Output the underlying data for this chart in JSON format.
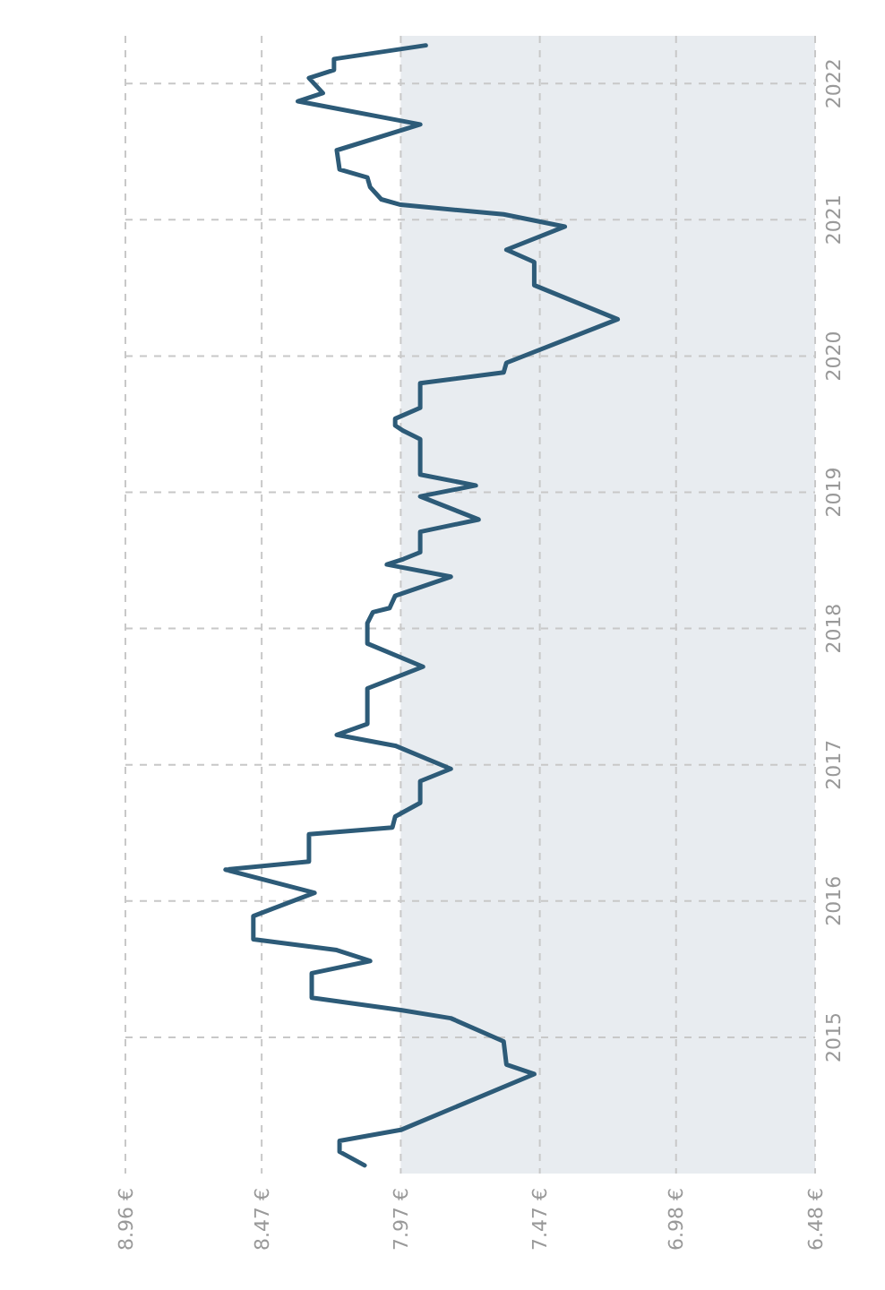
{
  "chart_data": {
    "type": "line",
    "x": [
      8.1,
      8.19,
      8.19,
      7.97,
      7.49,
      7.59,
      7.6,
      7.79,
      7.97,
      8.29,
      8.29,
      8.08,
      8.2,
      8.5,
      8.5,
      8.28,
      8.6,
      8.3,
      8.3,
      8.0,
      7.99,
      7.9,
      7.9,
      7.79,
      7.99,
      8.2,
      8.09,
      8.09,
      7.89,
      8.09,
      8.09,
      8.07,
      8.01,
      7.99,
      7.79,
      8.02,
      7.96,
      7.9,
      7.9,
      7.69,
      7.9,
      7.7,
      7.9,
      7.9,
      7.96,
      7.99,
      7.99,
      7.9,
      7.9,
      7.6,
      7.59,
      7.19,
      7.49,
      7.49,
      7.59,
      7.38,
      7.6,
      7.97,
      8.04,
      8.08,
      8.09,
      8.19,
      8.2,
      7.9,
      8.34,
      8.25,
      8.3,
      8.21,
      8.21,
      7.88
    ],
    "series": [
      {
        "color": "#2d5b78",
        "values": [
          2014.06,
          2014.16,
          2014.24,
          2014.32,
          2014.73,
          2014.8,
          2014.97,
          2015.14,
          2015.2,
          2015.29,
          2015.47,
          2015.56,
          2015.64,
          2015.72,
          2015.89,
          2016.06,
          2016.23,
          2016.29,
          2016.49,
          2016.54,
          2016.62,
          2016.72,
          2016.88,
          2016.97,
          2017.14,
          2017.22,
          2017.3,
          2017.56,
          2017.72,
          2017.89,
          2018.04,
          2018.12,
          2018.15,
          2018.24,
          2018.38,
          2018.47,
          2018.51,
          2018.56,
          2018.71,
          2018.8,
          2018.97,
          2019.05,
          2019.13,
          2019.39,
          2019.45,
          2019.49,
          2019.54,
          2019.62,
          2019.8,
          2019.88,
          2019.95,
          2020.27,
          2020.52,
          2020.69,
          2020.78,
          2020.95,
          2021.04,
          2021.11,
          2021.15,
          2021.24,
          2021.31,
          2021.37,
          2021.51,
          2021.7,
          2021.87,
          2021.93,
          2022.04,
          2022.1,
          2022.18,
          2022.28
        ]
      }
    ],
    "ylim": [
      2014,
      2022.35
    ],
    "yticks": [
      2015,
      2016,
      2017,
      2018,
      2019,
      2020,
      2021,
      2022
    ],
    "xlim": [
      8.96,
      6.48
    ],
    "xticks": [
      {
        "value": 8.96,
        "label": "8.96 €"
      },
      {
        "value": 8.47,
        "label": "8.47 €"
      },
      {
        "value": 7.97,
        "label": "7.97 €"
      },
      {
        "value": 7.47,
        "label": "7.47 €"
      },
      {
        "value": 6.98,
        "label": "6.98 €"
      },
      {
        "value": 6.48,
        "label": "6.48 €"
      }
    ],
    "bands": [
      {
        "axis": "x",
        "from": 7.97,
        "to": 6.48,
        "color": "#e8ecf0"
      }
    ],
    "grid": true,
    "line_style": "solid",
    "marker": "none"
  }
}
